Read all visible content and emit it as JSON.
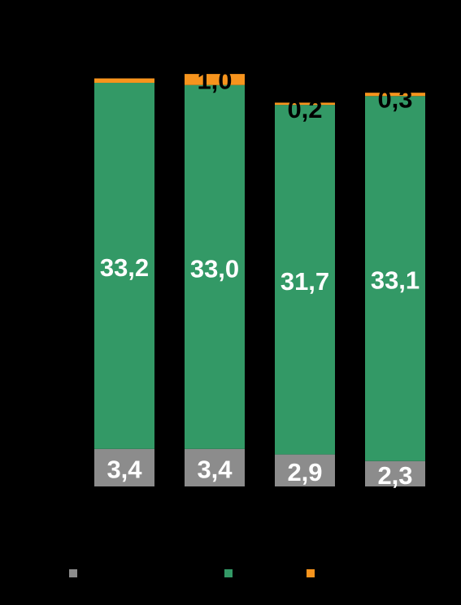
{
  "chart_data": {
    "type": "bar",
    "stacked": true,
    "title": "",
    "xlabel": "",
    "ylabel": "",
    "categories": [
      "",
      "",
      "",
      ""
    ],
    "series": [
      {
        "values": [
          3.4,
          3.4,
          2.9,
          2.3
        ],
        "labels": [
          "3,4",
          "3,4",
          "2,9",
          "2,3"
        ],
        "color": "#8c8c8c",
        "label_color": "#ffffff"
      },
      {
        "values": [
          33.2,
          33.0,
          31.7,
          33.1
        ],
        "labels": [
          "33,2",
          "33,0",
          "31,7",
          "33,1"
        ],
        "color": "#339966",
        "label_color": "#ffffff"
      },
      {
        "values": [
          0.4,
          1.0,
          0.2,
          0.3
        ],
        "labels": [
          "",
          "1,0",
          "0,2",
          "0,3"
        ],
        "color": "#f7941d",
        "label_color": "#000000"
      }
    ],
    "legend": {
      "placement": "bottom",
      "entries": [
        {
          "label": "",
          "color": "#8c8c8c"
        },
        {
          "label": "",
          "color": "#339966"
        },
        {
          "label": "",
          "color": "#f7941d"
        }
      ]
    },
    "grid": false,
    "background": "#000000"
  }
}
